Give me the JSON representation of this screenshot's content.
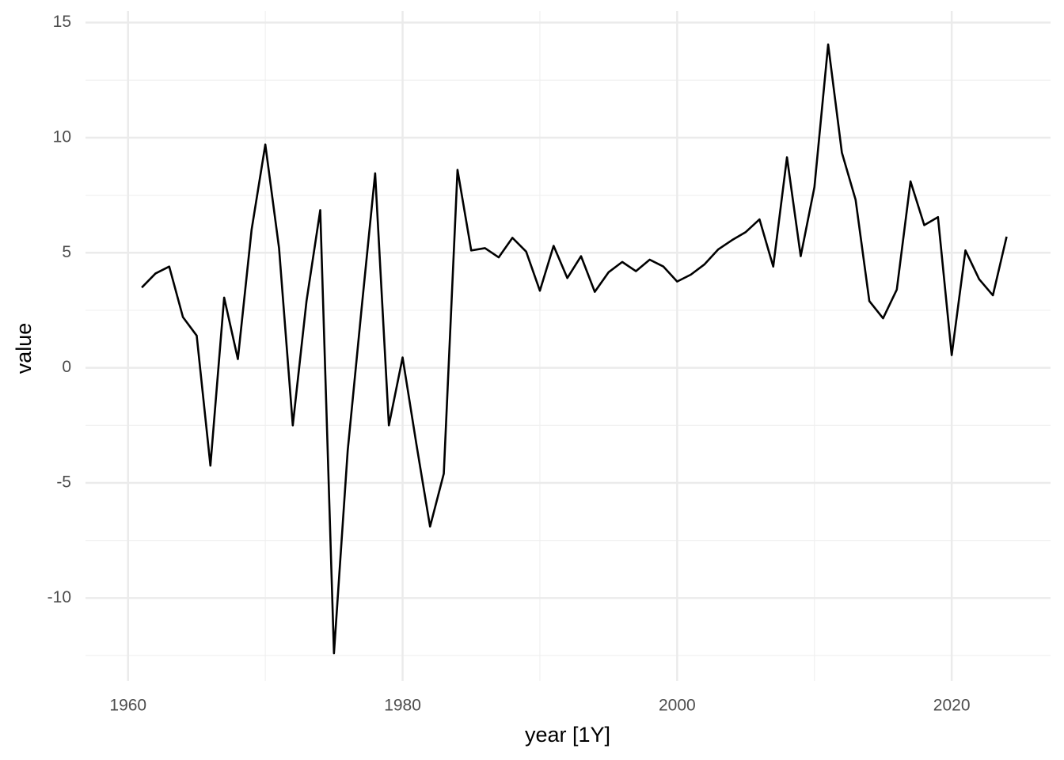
{
  "chart_data": {
    "type": "line",
    "x_label": "year [1Y]",
    "y_label": "value",
    "x": [
      1961,
      1962,
      1963,
      1964,
      1965,
      1966,
      1967,
      1968,
      1969,
      1970,
      1971,
      1972,
      1973,
      1974,
      1975,
      1976,
      1977,
      1978,
      1979,
      1980,
      1981,
      1982,
      1983,
      1984,
      1985,
      1986,
      1987,
      1988,
      1989,
      1990,
      1991,
      1992,
      1993,
      1994,
      1995,
      1996,
      1997,
      1998,
      1999,
      2000,
      2001,
      2002,
      2003,
      2004,
      2005,
      2006,
      2007,
      2008,
      2009,
      2010,
      2011,
      2012,
      2013,
      2014,
      2015,
      2016,
      2017,
      2018,
      2019,
      2020,
      2021,
      2022,
      2023,
      2024
    ],
    "values": [
      3.49,
      4.1,
      4.4,
      2.2,
      1.4,
      -4.25,
      3.05,
      0.38,
      6.0,
      9.7,
      5.2,
      -2.5,
      2.9,
      6.85,
      -12.4,
      -3.6,
      2.5,
      8.45,
      -2.5,
      0.45,
      -3.3,
      -6.9,
      -4.6,
      8.6,
      5.1,
      5.2,
      4.8,
      5.65,
      5.05,
      3.35,
      5.3,
      3.9,
      4.85,
      3.3,
      4.15,
      4.6,
      4.2,
      4.7,
      4.4,
      3.75,
      4.05,
      4.5,
      5.15,
      5.55,
      5.9,
      6.45,
      4.4,
      9.15,
      4.85,
      7.85,
      14.05,
      9.35,
      7.3,
      2.9,
      2.15,
      3.4,
      8.1,
      6.2,
      6.55,
      0.55,
      5.1,
      3.85,
      3.15,
      5.7
    ],
    "color": "#000000",
    "xlim": [
      1956.9,
      2027.2
    ],
    "xticks": [
      1960,
      1980,
      2000,
      2020
    ],
    "ylim": [
      -13.6,
      15.5
    ],
    "yticks": [
      -10,
      -5,
      0,
      5,
      10,
      15
    ],
    "grid": true
  }
}
